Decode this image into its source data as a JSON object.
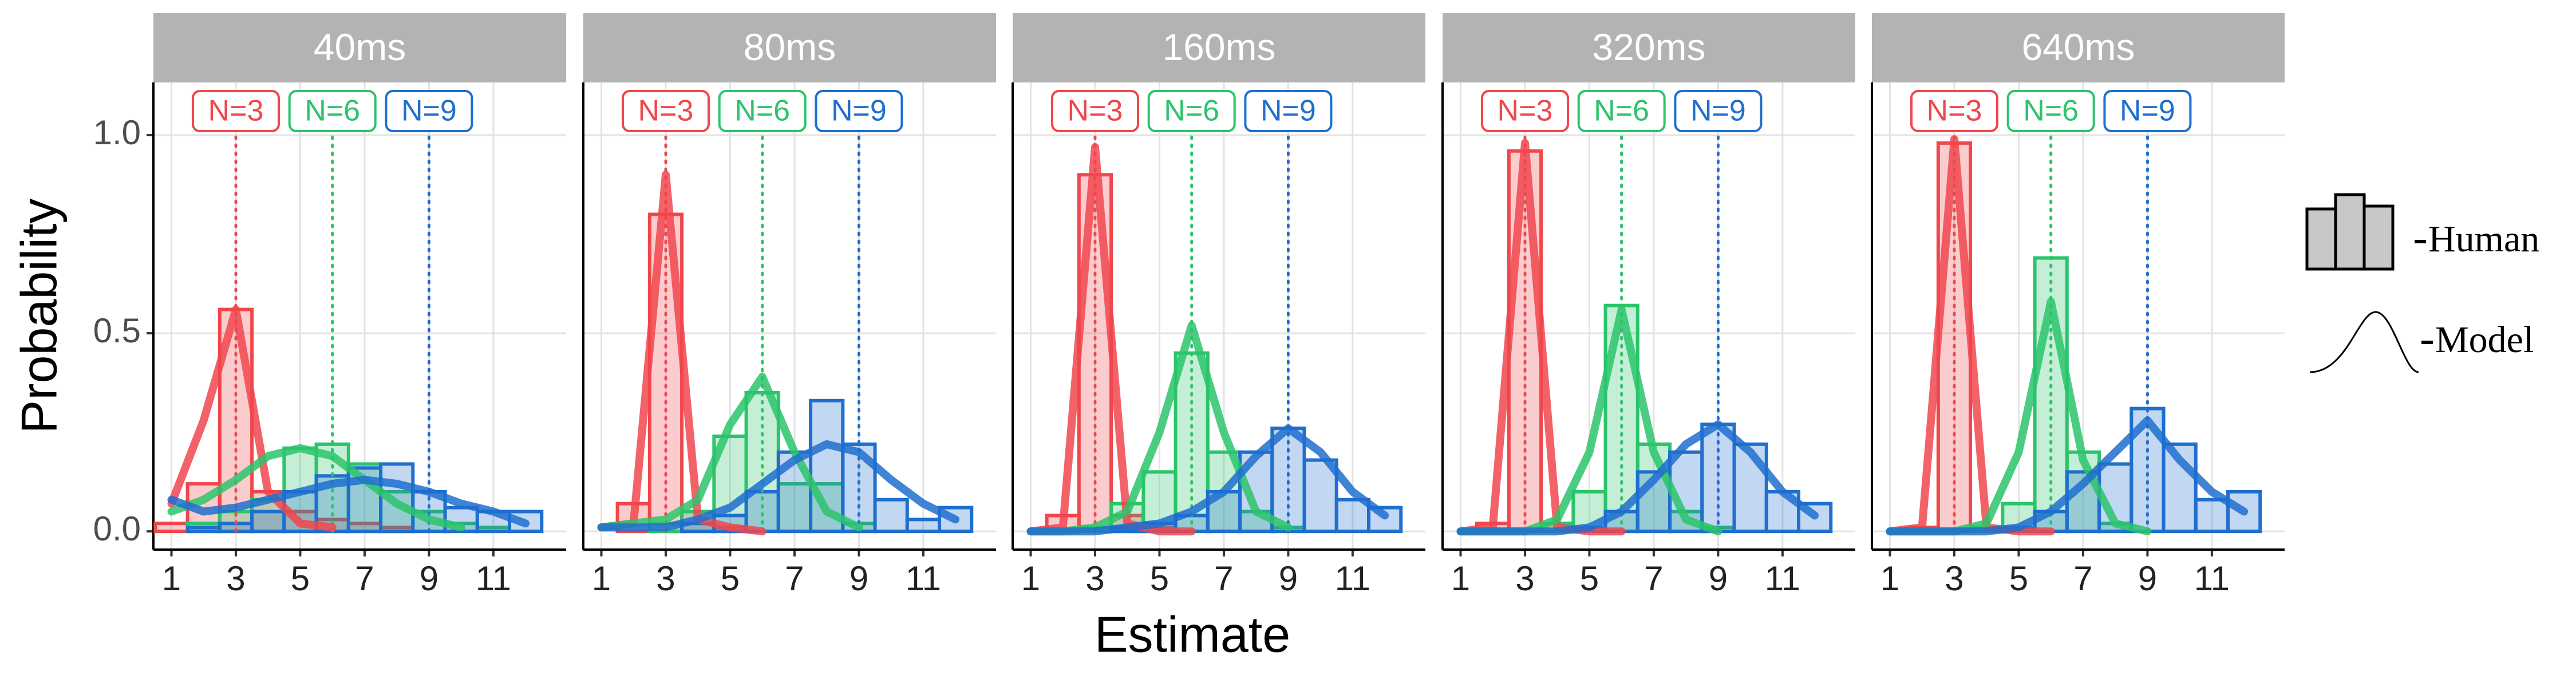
{
  "xlabel": "Estimate",
  "ylabel": "Probability",
  "legend": [
    "Human",
    "Model"
  ],
  "chart_data": [
    {
      "type": "bar",
      "title": "40ms",
      "x": [
        1,
        2,
        3,
        4,
        5,
        6,
        7,
        8,
        9,
        10,
        11,
        12
      ],
      "xlim": [
        0.44,
        13.26
      ],
      "xticks": [
        1,
        3,
        5,
        7,
        9,
        11
      ],
      "ylim": [
        -0.046,
        1.133
      ],
      "yticks": [
        {
          "value": 0,
          "label": "0.0"
        },
        {
          "value": 0.5,
          "label": "0.5"
        },
        {
          "value": 1,
          "label": "1.0"
        }
      ],
      "grid": true,
      "series": [
        {
          "name": "N=3",
          "color": "#f0474d",
          "target": 3,
          "values": [
            0.02,
            0.12,
            0.56,
            0.1,
            0.05,
            0.03,
            0.02,
            0.01,
            0,
            0,
            0,
            0
          ],
          "model": [
            0.07,
            0.28,
            0.56,
            0.1,
            0.02,
            0.01,
            null,
            null,
            null,
            null,
            null,
            null
          ]
        },
        {
          "name": "N=6",
          "color": "#2bc46b",
          "target": 6,
          "values": [
            0,
            0.02,
            0.05,
            0.08,
            0.21,
            0.22,
            0.17,
            0.1,
            0.05,
            0.02,
            0.01,
            0
          ],
          "model": [
            0.05,
            0.08,
            0.13,
            0.19,
            0.21,
            0.19,
            0.13,
            0.07,
            0.03,
            0.01,
            null,
            null
          ]
        },
        {
          "name": "N=9",
          "color": "#1f6fcf",
          "target": 9,
          "values": [
            0,
            0.01,
            0.02,
            0.05,
            0.1,
            0.14,
            0.16,
            0.17,
            0.1,
            0.06,
            0.05,
            0.05
          ],
          "model": [
            0.08,
            0.05,
            0.06,
            0.08,
            0.1,
            0.12,
            0.13,
            0.12,
            0.1,
            0.07,
            0.05,
            0.02
          ]
        }
      ]
    },
    {
      "type": "bar",
      "title": "80ms",
      "x": [
        1,
        2,
        3,
        4,
        5,
        6,
        7,
        8,
        9,
        10,
        11,
        12
      ],
      "xlim": [
        0.44,
        13.26
      ],
      "xticks": [
        1,
        3,
        5,
        7,
        9,
        11
      ],
      "ylim": [
        -0.046,
        1.133
      ],
      "yticks": [
        {
          "value": 0,
          "label": "0.0"
        },
        {
          "value": 0.5,
          "label": "0.5"
        },
        {
          "value": 1,
          "label": "1.0"
        }
      ],
      "grid": true,
      "series": [
        {
          "name": "N=3",
          "color": "#f0474d",
          "target": 3,
          "values": [
            0,
            0.07,
            0.8,
            0.05,
            0.01,
            0,
            0,
            0,
            0,
            0,
            0,
            0
          ],
          "model": [
            0.01,
            0.02,
            0.9,
            0.03,
            0.01,
            0,
            null,
            null,
            null,
            null,
            null,
            null
          ]
        },
        {
          "name": "N=6",
          "color": "#2bc46b",
          "target": 6,
          "values": [
            0,
            0,
            0.02,
            0.05,
            0.24,
            0.35,
            0.12,
            0.12,
            0.02,
            0,
            0,
            0
          ],
          "model": [
            0.01,
            0.02,
            0.03,
            0.08,
            0.27,
            0.39,
            0.2,
            0.05,
            0.01,
            null,
            null,
            null
          ]
        },
        {
          "name": "N=9",
          "color": "#1f6fcf",
          "target": 9,
          "values": [
            0,
            0,
            0,
            0.02,
            0.04,
            0.1,
            0.2,
            0.33,
            0.22,
            0.08,
            0.03,
            0.06
          ],
          "model": [
            0.01,
            0.01,
            0.01,
            0.03,
            0.06,
            0.12,
            0.18,
            0.22,
            0.2,
            0.13,
            0.07,
            0.03
          ]
        }
      ]
    },
    {
      "type": "bar",
      "title": "160ms",
      "x": [
        1,
        2,
        3,
        4,
        5,
        6,
        7,
        8,
        9,
        10,
        11,
        12
      ],
      "xlim": [
        0.44,
        13.26
      ],
      "xticks": [
        1,
        3,
        5,
        7,
        9,
        11
      ],
      "ylim": [
        -0.046,
        1.133
      ],
      "yticks": [
        {
          "value": 0,
          "label": "0.0"
        },
        {
          "value": 0.5,
          "label": "0.5"
        },
        {
          "value": 1,
          "label": "1.0"
        }
      ],
      "grid": true,
      "series": [
        {
          "name": "N=3",
          "color": "#f0474d",
          "target": 3,
          "values": [
            0,
            0.04,
            0.9,
            0.04,
            0.01,
            0,
            0,
            0,
            0,
            0,
            0,
            0
          ],
          "model": [
            0,
            0.01,
            0.97,
            0.02,
            0,
            0,
            null,
            null,
            null,
            null,
            null,
            null
          ]
        },
        {
          "name": "N=6",
          "color": "#2bc46b",
          "target": 6,
          "values": [
            0,
            0,
            0.01,
            0.07,
            0.15,
            0.45,
            0.2,
            0.05,
            0.01,
            0,
            0,
            0
          ],
          "model": [
            0,
            0,
            0.01,
            0.05,
            0.25,
            0.52,
            0.25,
            0.05,
            0.01,
            null,
            null,
            null
          ]
        },
        {
          "name": "N=9",
          "color": "#1f6fcf",
          "target": 9,
          "values": [
            0,
            0,
            0,
            0.01,
            0.02,
            0.04,
            0.1,
            0.2,
            0.26,
            0.18,
            0.08,
            0.06
          ],
          "model": [
            0,
            0,
            0,
            0.01,
            0.02,
            0.05,
            0.1,
            0.19,
            0.26,
            0.2,
            0.1,
            0.04
          ]
        }
      ]
    },
    {
      "type": "bar",
      "title": "320ms",
      "x": [
        1,
        2,
        3,
        4,
        5,
        6,
        7,
        8,
        9,
        10,
        11,
        12
      ],
      "xlim": [
        0.44,
        13.26
      ],
      "xticks": [
        1,
        3,
        5,
        7,
        9,
        11
      ],
      "ylim": [
        -0.046,
        1.133
      ],
      "yticks": [
        {
          "value": 0,
          "label": "0.0"
        },
        {
          "value": 0.5,
          "label": "0.5"
        },
        {
          "value": 1,
          "label": "1.0"
        }
      ],
      "grid": true,
      "series": [
        {
          "name": "N=3",
          "color": "#f0474d",
          "target": 3,
          "values": [
            0,
            0.02,
            0.96,
            0.02,
            0,
            0,
            0,
            0,
            0,
            0,
            0,
            0
          ],
          "model": [
            0,
            0.01,
            0.98,
            0.01,
            0,
            0,
            null,
            null,
            null,
            null,
            null,
            null
          ]
        },
        {
          "name": "N=6",
          "color": "#2bc46b",
          "target": 6,
          "values": [
            0,
            0,
            0,
            0.02,
            0.1,
            0.57,
            0.22,
            0.05,
            0.01,
            0,
            0,
            0
          ],
          "model": [
            0,
            0,
            0,
            0.03,
            0.2,
            0.56,
            0.2,
            0.03,
            0,
            null,
            null,
            null
          ]
        },
        {
          "name": "N=9",
          "color": "#1f6fcf",
          "target": 9,
          "values": [
            0,
            0,
            0,
            0,
            0.01,
            0.05,
            0.15,
            0.2,
            0.27,
            0.22,
            0.1,
            0.07
          ],
          "model": [
            0,
            0,
            0,
            0,
            0.01,
            0.05,
            0.13,
            0.22,
            0.27,
            0.2,
            0.1,
            0.04
          ]
        }
      ]
    },
    {
      "type": "bar",
      "title": "640ms",
      "x": [
        1,
        2,
        3,
        4,
        5,
        6,
        7,
        8,
        9,
        10,
        11,
        12
      ],
      "xlim": [
        0.44,
        13.26
      ],
      "xticks": [
        1,
        3,
        5,
        7,
        9,
        11
      ],
      "ylim": [
        -0.046,
        1.133
      ],
      "yticks": [
        {
          "value": 0,
          "label": "0.0"
        },
        {
          "value": 0.5,
          "label": "0.5"
        },
        {
          "value": 1,
          "label": "1.0"
        }
      ],
      "grid": true,
      "series": [
        {
          "name": "N=3",
          "color": "#f0474d",
          "target": 3,
          "values": [
            0,
            0.01,
            0.98,
            0.01,
            0,
            0,
            0,
            0,
            0,
            0,
            0,
            0
          ],
          "model": [
            0,
            0.01,
            0.99,
            0.01,
            0,
            0,
            null,
            null,
            null,
            null,
            null,
            null
          ]
        },
        {
          "name": "N=6",
          "color": "#2bc46b",
          "target": 6,
          "values": [
            0,
            0,
            0,
            0.01,
            0.07,
            0.69,
            0.2,
            0.02,
            0,
            0,
            0,
            0
          ],
          "model": [
            0,
            0,
            0,
            0.02,
            0.2,
            0.58,
            0.18,
            0.02,
            0,
            null,
            null,
            null
          ]
        },
        {
          "name": "N=9",
          "color": "#1f6fcf",
          "target": 9,
          "values": [
            0,
            0,
            0,
            0,
            0.01,
            0.05,
            0.15,
            0.17,
            0.31,
            0.22,
            0.08,
            0.1
          ],
          "model": [
            0,
            0,
            0,
            0,
            0.01,
            0.05,
            0.12,
            0.2,
            0.28,
            0.18,
            0.1,
            0.05
          ]
        }
      ]
    }
  ]
}
